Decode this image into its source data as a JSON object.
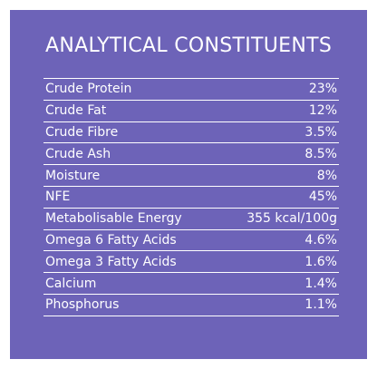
{
  "panel": {
    "title": "ANALYTICAL CONSTITUENTS",
    "background_color": "#6d63b8",
    "text_color": "#ffffff"
  },
  "rows": [
    {
      "label": "Crude Protein",
      "value": "23%"
    },
    {
      "label": "Crude Fat",
      "value": "12%"
    },
    {
      "label": "Crude Fibre",
      "value": "3.5%"
    },
    {
      "label": "Crude Ash",
      "value": "8.5%"
    },
    {
      "label": "Moisture",
      "value": "8%"
    },
    {
      "label": "NFE",
      "value": "45%"
    },
    {
      "label": "Metabolisable Energy",
      "value": "355 kcal/100g"
    },
    {
      "label": "Omega 6 Fatty Acids",
      "value": "4.6%"
    },
    {
      "label": "Omega 3 Fatty Acids",
      "value": "1.6%"
    },
    {
      "label": "Calcium",
      "value": "1.4%"
    },
    {
      "label": "Phosphorus",
      "value": "1.1%"
    }
  ]
}
